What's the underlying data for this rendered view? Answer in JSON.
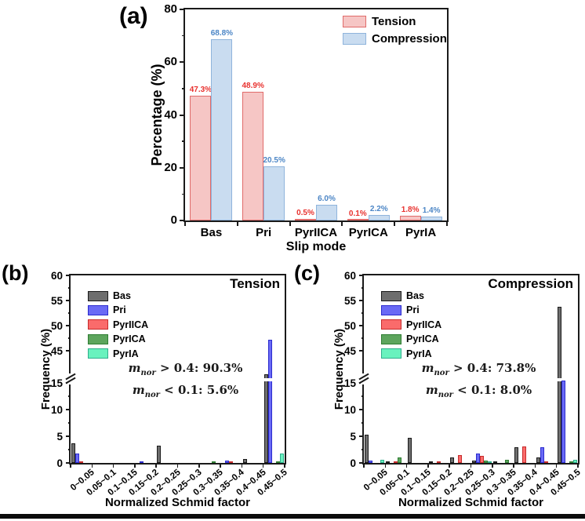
{
  "chart_data": [
    {
      "id": "a",
      "type": "bar",
      "panel_label": "(a)",
      "xlabel": "Slip mode",
      "ylabel": "Percentage (%)",
      "ylim": [
        0,
        80
      ],
      "yticks": [
        0,
        20,
        40,
        60,
        80
      ],
      "yminor": [
        10,
        30,
        50,
        70
      ],
      "grid": false,
      "legend_position": "top-right-inside",
      "categories": [
        "Bas",
        "Pri",
        "PyrIICA",
        "PyrICA",
        "PyrIA"
      ],
      "series": [
        {
          "name": "Tension",
          "fill": "#F6C6C5",
          "edge": "#E06B6A",
          "label_color": "#E8312E",
          "values": [
            47.3,
            48.9,
            0.5,
            0.1,
            1.8
          ],
          "value_labels": [
            "47.3%",
            "48.9%",
            "0.5%",
            "0.1%",
            "1.8%"
          ]
        },
        {
          "name": "Compression",
          "fill": "#C9DCF0",
          "edge": "#8FB4DC",
          "label_color": "#4C86C6",
          "values": [
            68.8,
            20.5,
            6.0,
            2.2,
            1.4
          ],
          "value_labels": [
            "68.8%",
            "20.5%",
            "6.0%",
            "2.2%",
            "1.4%"
          ]
        }
      ]
    },
    {
      "id": "b",
      "type": "bar",
      "panel_label": "(b)",
      "inplot_title": "Tension",
      "xlabel": "Normalized Schmid factor",
      "ylabel": "Frequency (%)",
      "axis_break": {
        "lower_ticks": [
          0,
          5,
          10,
          15
        ],
        "upper_ticks": [
          45,
          50,
          55,
          60
        ],
        "minor_ticks": [
          2.5,
          7.5,
          12.5,
          47.5,
          52.5,
          57.5
        ]
      },
      "grid": false,
      "legend_position": "top-left-inside",
      "categories": [
        "0~0.05",
        "0.05~0.1",
        "0.1~0.15",
        "0.15~0.2",
        "0.2~0.25",
        "0.25~0.3",
        "0.3~0.35",
        "0.35~0.4",
        "0.4~0.45",
        "0.45~0.5"
      ],
      "series": [
        {
          "name": "Bas",
          "fill": "#6E6E6E",
          "edge": "#1A1A1A",
          "values": [
            3.7,
            0,
            0,
            0,
            3.3,
            0,
            0,
            0,
            0.7,
            40.4
          ]
        },
        {
          "name": "Pri",
          "fill": "#6A6AF5",
          "edge": "#2B2BCE",
          "values": [
            1.8,
            0,
            0,
            0.15,
            0,
            0,
            0,
            0.5,
            0,
            47.2
          ]
        },
        {
          "name": "PyrIICA",
          "fill": "#FA6B6B",
          "edge": "#C62B2B",
          "values": [
            0.15,
            0,
            0,
            0,
            0,
            0,
            0,
            0.2,
            0,
            0
          ]
        },
        {
          "name": "PyrICA",
          "fill": "#5DA55D",
          "edge": "#2E7D32",
          "values": [
            0,
            0,
            0,
            0,
            0,
            0,
            0.1,
            0,
            0,
            0.2
          ]
        },
        {
          "name": "PyrIA",
          "fill": "#69F2BE",
          "edge": "#2FAE8C",
          "values": [
            0,
            0,
            0,
            0,
            0,
            0,
            0,
            0,
            0,
            1.8
          ]
        }
      ],
      "annotations": [
        {
          "var": "m",
          "sub": "nor",
          "text": " > 0.4: 90.3%"
        },
        {
          "var": "m",
          "sub": "nor",
          "text": " < 0.1: 5.6%"
        }
      ]
    },
    {
      "id": "c",
      "type": "bar",
      "panel_label": "(c)",
      "inplot_title": "Compression",
      "xlabel": "Normalized Schmid factor",
      "ylabel": "Frequency (%)",
      "axis_break": {
        "lower_ticks": [
          0,
          5,
          10,
          15
        ],
        "upper_ticks": [
          45,
          50,
          55,
          60
        ],
        "minor_ticks": [
          2.5,
          7.5,
          12.5,
          47.5,
          52.5,
          57.5
        ]
      },
      "grid": false,
      "legend_position": "top-left-inside",
      "categories": [
        "0~0.05",
        "0.05~0.1",
        "0.1~0.15",
        "0.15~0.2",
        "0.2~0.25",
        "0.25~0.3",
        "0.3~0.35",
        "0.35~0.4",
        "0.4~0.45",
        "0.45~0.5"
      ],
      "series": [
        {
          "name": "Bas",
          "fill": "#6E6E6E",
          "edge": "#1A1A1A",
          "values": [
            5.3,
            0.3,
            4.7,
            0.15,
            1.0,
            0.4,
            0.15,
            3.0,
            1.0,
            53.7
          ]
        },
        {
          "name": "Pri",
          "fill": "#6A6AF5",
          "edge": "#2B2BCE",
          "values": [
            0.5,
            0,
            0,
            0,
            0,
            1.8,
            0,
            0,
            2.9,
            15.4
          ]
        },
        {
          "name": "PyrIICA",
          "fill": "#FA6B6B",
          "edge": "#C62B2B",
          "values": [
            0,
            0.3,
            0,
            0.1,
            1.4,
            1.3,
            0,
            3.1,
            0.1,
            0
          ]
        },
        {
          "name": "PyrICA",
          "fill": "#5DA55D",
          "edge": "#2E7D32",
          "values": [
            0,
            1.0,
            0,
            0,
            0,
            0.5,
            0.6,
            0,
            0,
            0.2
          ]
        },
        {
          "name": "PyrIA",
          "fill": "#69F2BE",
          "edge": "#2FAE8C",
          "values": [
            0.6,
            0,
            0,
            0,
            0,
            0.25,
            0,
            0,
            0,
            0.6
          ]
        }
      ],
      "annotations": [
        {
          "var": "m",
          "sub": "nor",
          "text": " > 0.4: 73.8%"
        },
        {
          "var": "m",
          "sub": "nor",
          "text": " < 0.1: 8.0%"
        }
      ]
    }
  ]
}
